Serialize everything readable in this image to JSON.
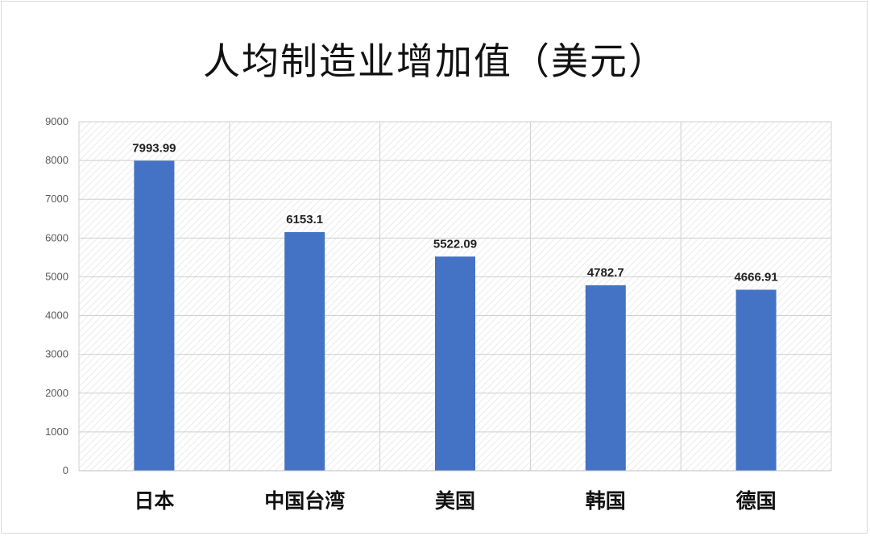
{
  "chart_data": {
    "type": "bar",
    "title": "人均制造业增加值（美元）",
    "categories": [
      "日本",
      "中国台湾",
      "美国",
      "韩国",
      "德国"
    ],
    "values": [
      7993.99,
      6153.1,
      5522.09,
      4782.7,
      4666.91
    ],
    "value_labels": [
      "7993.99",
      "6153.1",
      "5522.09",
      "4782.7",
      "4666.91"
    ],
    "ylim": [
      0,
      9000
    ],
    "yticks": [
      "0",
      "1000",
      "2000",
      "3000",
      "4000",
      "5000",
      "6000",
      "7000",
      "8000",
      "9000"
    ],
    "grid": true,
    "bar_color": "#4472c4",
    "xlabel": "",
    "ylabel": ""
  }
}
